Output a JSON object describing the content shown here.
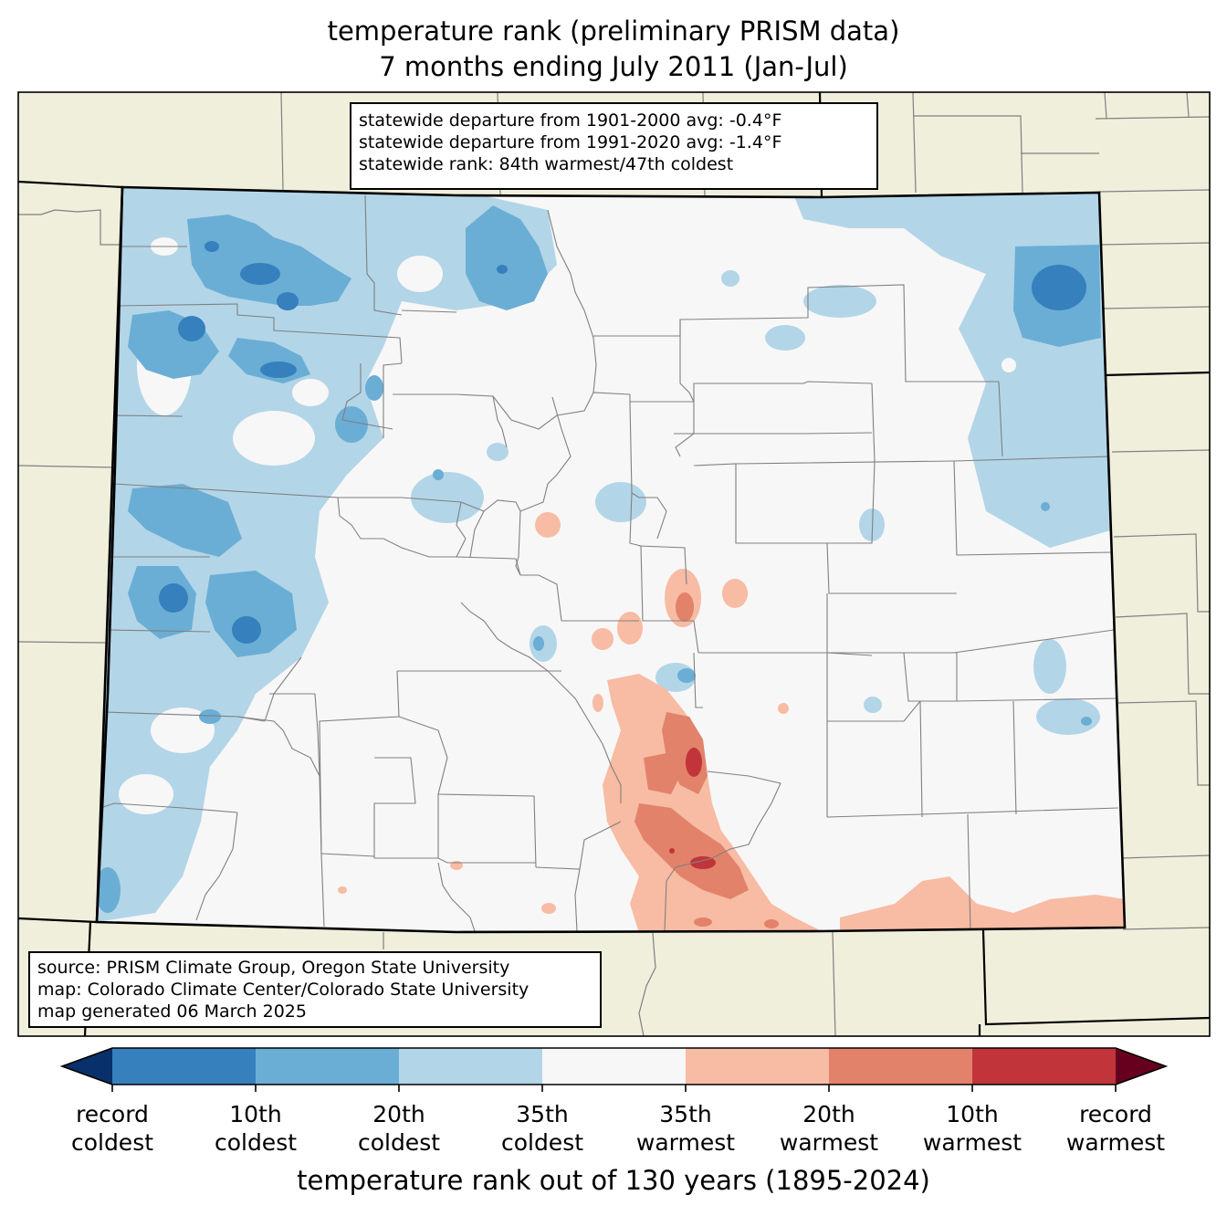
{
  "title": {
    "line1": "temperature rank (preliminary PRISM data)",
    "line2": "7 months ending July 2011 (Jan-Jul)"
  },
  "stats": {
    "line1": "statewide departure from 1901-2000 avg: -0.4°F",
    "line2": "statewide departure from 1991-2020 avg: -1.4°F",
    "line3": "statewide rank: 84th warmest/47th coldest"
  },
  "source": {
    "line1": "source: PRISM Climate Group, Oregon State University",
    "line2": "map: Colorado Climate Center/Colorado State University",
    "line3": "map generated 06 March 2025"
  },
  "colorbar": {
    "title": "temperature rank out of 130 years (1895-2024)",
    "colors": [
      "#08306b",
      "#3580bd",
      "#6aaed5",
      "#b3d5e8",
      "#f7f7f7",
      "#f8bba4",
      "#e2826a",
      "#c1353a",
      "#67001f"
    ],
    "labels": [
      {
        "top": "record",
        "bottom": "coldest"
      },
      {
        "top": "10th",
        "bottom": "coldest"
      },
      {
        "top": "20th",
        "bottom": "coldest"
      },
      {
        "top": "35th",
        "bottom": "coldest"
      },
      {
        "top": "35th",
        "bottom": "warmest"
      },
      {
        "top": "20th",
        "bottom": "warmest"
      },
      {
        "top": "10th",
        "bottom": "warmest"
      },
      {
        "top": "record",
        "bottom": "warmest"
      }
    ]
  },
  "map_colors": {
    "outside": "#efefdc",
    "neutral": "#f7f7f7",
    "county_line": "#808080",
    "border": "#000000"
  }
}
